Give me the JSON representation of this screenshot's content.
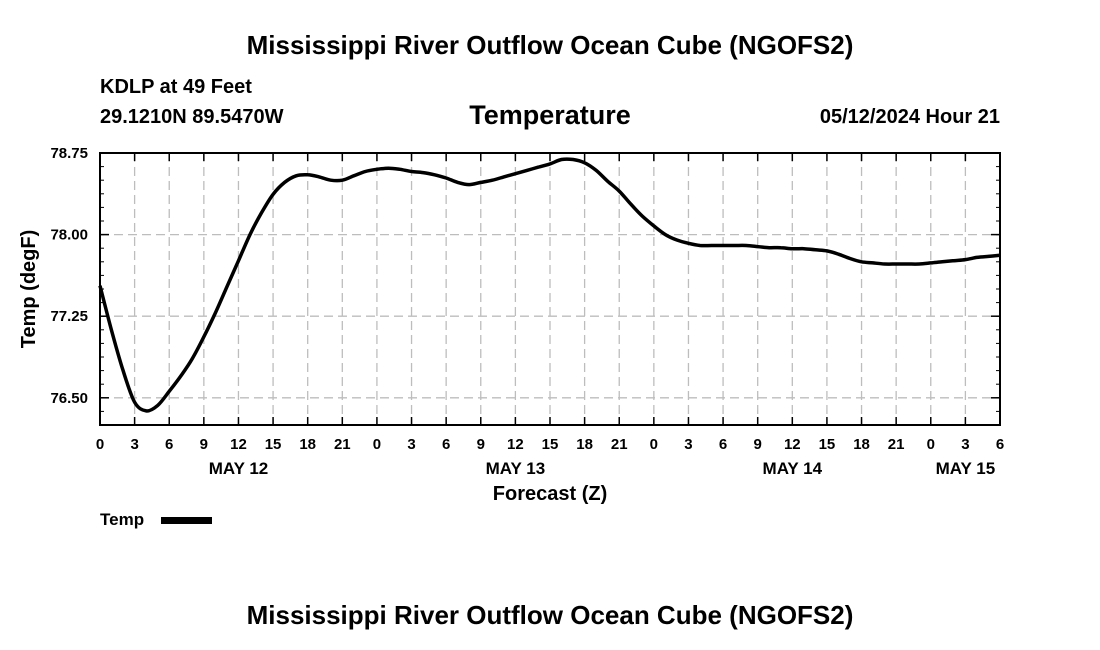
{
  "header": {
    "title": "Mississippi River Outflow Ocean Cube (NGOFS2)",
    "station": "KDLP at 49 Feet",
    "coordinates": "29.1210N  89.5470W",
    "variable": "Temperature",
    "datetime": "05/12/2024 Hour 21"
  },
  "footer": {
    "title": "Mississippi River Outflow Ocean Cube (NGOFS2)"
  },
  "colors": {
    "line": "#000000",
    "grid": "#bdbdbd",
    "background": "#ffffff"
  },
  "chart_data": {
    "type": "line",
    "title": "Temperature",
    "xlabel": "Forecast (Z)",
    "ylabel": "Temp (degF)",
    "xlim": [
      0,
      78
    ],
    "ylim": [
      76.25,
      78.75
    ],
    "yticks": [
      "76.50",
      "77.25",
      "78.00",
      "78.75"
    ],
    "ytick_values": [
      76.5,
      77.25,
      78.0,
      78.75
    ],
    "xtick_labels": [
      "0",
      "3",
      "6",
      "9",
      "12",
      "15",
      "18",
      "21",
      "0",
      "3",
      "6",
      "9",
      "12",
      "15",
      "18",
      "21",
      "0",
      "3",
      "6",
      "9",
      "12",
      "15",
      "18",
      "21",
      "0",
      "3",
      "6"
    ],
    "date_labels": [
      {
        "label": "MAY 12",
        "hour": 12
      },
      {
        "label": "MAY 13",
        "hour": 36
      },
      {
        "label": "MAY 14",
        "hour": 60
      },
      {
        "label": "MAY 15",
        "hour": 75
      }
    ],
    "grid": true,
    "legend": {
      "label": "Temp",
      "position": "bottom-left"
    },
    "series": [
      {
        "name": "Temp",
        "x": [
          0,
          1,
          2,
          3,
          4,
          5,
          6,
          7,
          8,
          9,
          10,
          11,
          12,
          13,
          14,
          15,
          16,
          17,
          18,
          19,
          20,
          21,
          22,
          23,
          24,
          25,
          26,
          27,
          28,
          29,
          30,
          31,
          32,
          33,
          34,
          35,
          36,
          37,
          38,
          39,
          40,
          41,
          42,
          43,
          44,
          45,
          46,
          47,
          48,
          49,
          50,
          51,
          52,
          53,
          54,
          55,
          56,
          57,
          58,
          59,
          60,
          61,
          62,
          63,
          64,
          65,
          66,
          67,
          68,
          69,
          70,
          71,
          72,
          73,
          74,
          75,
          76,
          77,
          78
        ],
        "values": [
          77.53,
          77.12,
          76.75,
          76.46,
          76.38,
          76.43,
          76.56,
          76.7,
          76.86,
          77.06,
          77.28,
          77.52,
          77.76,
          78.0,
          78.2,
          78.37,
          78.48,
          78.54,
          78.55,
          78.53,
          78.5,
          78.5,
          78.54,
          78.58,
          78.6,
          78.61,
          78.6,
          78.58,
          78.57,
          78.55,
          78.52,
          78.48,
          78.46,
          78.48,
          78.5,
          78.53,
          78.56,
          78.59,
          78.62,
          78.65,
          78.69,
          78.69,
          78.66,
          78.59,
          78.49,
          78.4,
          78.28,
          78.17,
          78.08,
          78.0,
          77.95,
          77.92,
          77.9,
          77.9,
          77.9,
          77.9,
          77.9,
          77.89,
          77.88,
          77.88,
          77.87,
          77.87,
          77.86,
          77.85,
          77.82,
          77.78,
          77.75,
          77.74,
          77.73,
          77.73,
          77.73,
          77.73,
          77.74,
          77.75,
          77.76,
          77.77,
          77.79,
          77.8,
          77.81
        ]
      }
    ]
  }
}
